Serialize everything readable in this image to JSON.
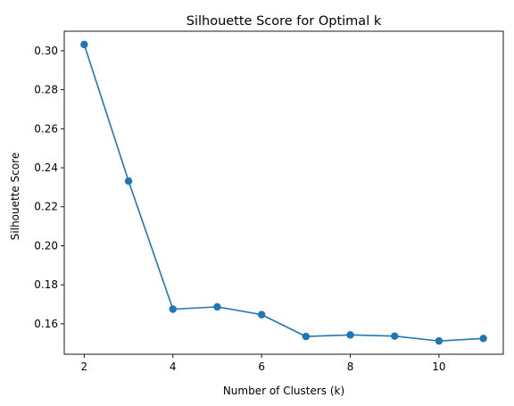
{
  "chart_data": {
    "type": "line",
    "title": "Silhouette Score for Optimal k",
    "xlabel": "Number of Clusters (k)",
    "ylabel": "Silhouette Score",
    "x": [
      2,
      3,
      4,
      5,
      6,
      7,
      8,
      9,
      10,
      11
    ],
    "series": [
      {
        "values": [
          0.3032,
          0.2332,
          0.1675,
          0.1687,
          0.1647,
          0.1535,
          0.1543,
          0.1537,
          0.1512,
          0.1525
        ],
        "color": "#1f77b4",
        "marker": "circle"
      }
    ],
    "xticks": [
      "2",
      "4",
      "6",
      "8",
      "10"
    ],
    "yticks": [
      "0.16",
      "0.18",
      "0.20",
      "0.22",
      "0.24",
      "0.26",
      "0.28",
      "0.30"
    ],
    "xlim": [
      1.55,
      11.45
    ],
    "ylim": [
      0.1444,
      0.31
    ],
    "grid": false,
    "legend": "none"
  }
}
